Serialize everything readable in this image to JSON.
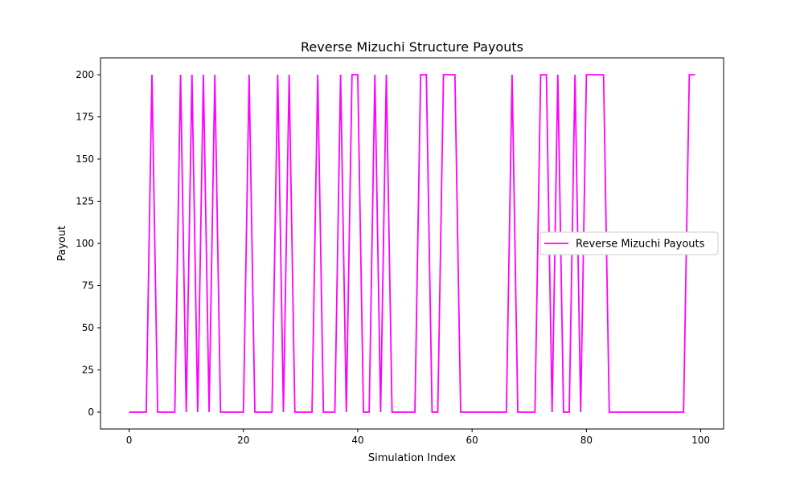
{
  "chart_data": {
    "type": "line",
    "title": "Reverse Mizuchi Structure Payouts",
    "xlabel": "Simulation Index",
    "ylabel": "Payout",
    "xlim": [
      -5,
      104
    ],
    "ylim": [
      -10,
      210
    ],
    "x_ticks": [
      0,
      20,
      40,
      60,
      80,
      100
    ],
    "y_ticks": [
      0,
      25,
      50,
      75,
      100,
      125,
      150,
      175,
      200
    ],
    "grid": false,
    "legend_position": "center-right",
    "series": [
      {
        "name": "Reverse Mizuchi Payouts",
        "color": "#ff00ff",
        "x": [
          0,
          1,
          2,
          3,
          4,
          5,
          6,
          7,
          8,
          9,
          10,
          11,
          12,
          13,
          14,
          15,
          16,
          17,
          18,
          19,
          20,
          21,
          22,
          23,
          24,
          25,
          26,
          27,
          28,
          29,
          30,
          31,
          32,
          33,
          34,
          35,
          36,
          37,
          38,
          39,
          40,
          41,
          42,
          43,
          44,
          45,
          46,
          47,
          48,
          49,
          50,
          51,
          52,
          53,
          54,
          55,
          56,
          57,
          58,
          59,
          60,
          61,
          62,
          63,
          64,
          65,
          66,
          67,
          68,
          69,
          70,
          71,
          72,
          73,
          74,
          75,
          76,
          77,
          78,
          79,
          80,
          81,
          82,
          83,
          84,
          85,
          86,
          87,
          88,
          89,
          90,
          91,
          92,
          93,
          94,
          95,
          96,
          97,
          98,
          99
        ],
        "values": [
          0,
          0,
          0,
          0,
          200,
          0,
          0,
          0,
          0,
          200,
          0,
          200,
          0,
          200,
          0,
          200,
          0,
          0,
          0,
          0,
          0,
          200,
          0,
          0,
          0,
          0,
          200,
          0,
          200,
          0,
          0,
          0,
          0,
          200,
          0,
          0,
          0,
          200,
          0,
          200,
          200,
          0,
          0,
          200,
          0,
          200,
          0,
          0,
          0,
          0,
          0,
          200,
          200,
          0,
          0,
          200,
          200,
          200,
          0,
          0,
          0,
          0,
          0,
          0,
          0,
          0,
          0,
          200,
          0,
          0,
          0,
          0,
          200,
          200,
          0,
          200,
          0,
          0,
          200,
          0,
          200,
          200,
          200,
          200,
          0,
          0,
          0,
          0,
          0,
          0,
          0,
          0,
          0,
          0,
          0,
          0,
          0,
          0,
          200,
          200
        ]
      }
    ]
  }
}
